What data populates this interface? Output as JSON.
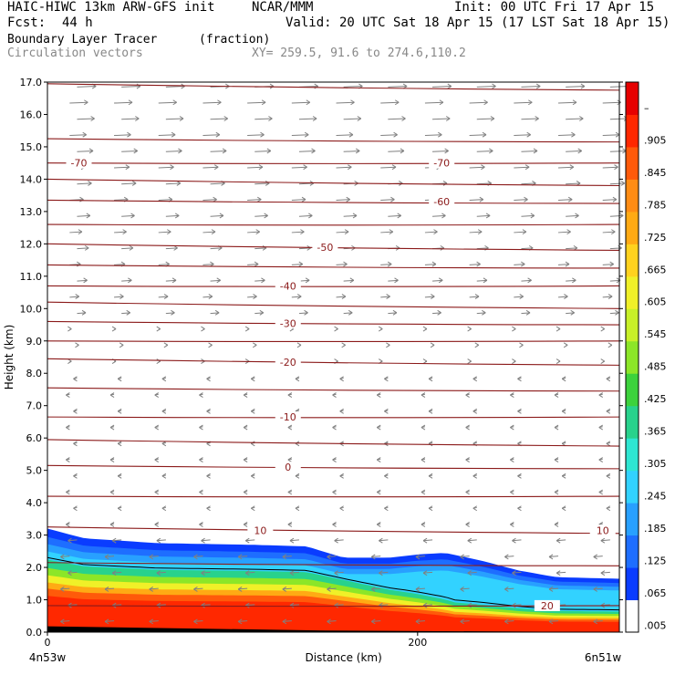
{
  "header": {
    "model": "HAIC-HIWC 13km ARW-GFS init",
    "org": "NCAR/MMM",
    "init": "Init: 00 UTC Fri 17 Apr 15",
    "fcst_label": "Fcst:",
    "fcst_value": "44 h",
    "valid": "Valid: 20 UTC Sat 18 Apr 15 (17 LST Sat 18 Apr 15)",
    "field": "Boundary Layer Tracer",
    "units": "(fraction)",
    "field2": "Circulation vectors",
    "xy": "XY= 259.5, 91.6 to 274.6,110.2"
  },
  "chart_data": {
    "type": "heatmap",
    "ylabel": "Height (km)",
    "xlabel": "Distance (km)",
    "x_left_label": "4n53w",
    "x_right_label": "6n51w",
    "xlim": [
      0,
      309
    ],
    "ylim": [
      0,
      17
    ],
    "x_ticks": [
      "0",
      "200"
    ],
    "x_tick_values": [
      0,
      200
    ],
    "y_ticks": [
      "0.0",
      "1.0",
      "2.0",
      "3.0",
      "4.0",
      "5.0",
      "6.0",
      "7.0",
      "8.0",
      "9.0",
      "10.0",
      "11.0",
      "12.0",
      "13.0",
      "14.0",
      "15.0",
      "16.0",
      "17.0"
    ],
    "colorbar_labels": [
      ".005",
      ".065",
      ".125",
      ".185",
      ".245",
      ".305",
      ".365",
      ".425",
      ".485",
      ".545",
      ".605",
      ".665",
      ".725",
      ".785",
      ".845",
      ".905",
      "–"
    ],
    "colorbar_colors": [
      "#ffffff",
      "#0a3cff",
      "#1e6eff",
      "#28a0ff",
      "#32d2ff",
      "#2ee6d2",
      "#28d28c",
      "#3cd23c",
      "#8ce628",
      "#c8f028",
      "#f0f028",
      "#ffd21e",
      "#ffaa14",
      "#ff8c14",
      "#ff5a0a",
      "#ff2800",
      "#e60000"
    ],
    "isotherms": [
      {
        "label": "20",
        "value": 20,
        "height": 0.82
      },
      {
        "label": "10",
        "value": 10,
        "height": 3.15
      },
      {
        "label": "0",
        "value": 0,
        "height": 5.1
      },
      {
        "label": "-10",
        "value": -10,
        "height": 6.65
      },
      {
        "label": "-20",
        "value": -20,
        "height": 8.35
      },
      {
        "label": "-30",
        "value": -30,
        "height": 9.55
      },
      {
        "label": "-40",
        "value": -40,
        "height": 10.7
      },
      {
        "label": "-50",
        "value": -50,
        "height": 11.9
      },
      {
        "label": "-60",
        "value": -60,
        "height": 13.3
      },
      {
        "label": "-70",
        "value": -70,
        "height": 14.5
      }
    ],
    "isotherm_color": "#8b1a1a",
    "vector_color": "#808080",
    "tracer_top_km": [
      [
        0,
        3.2
      ],
      [
        20,
        2.9
      ],
      [
        60,
        2.75
      ],
      [
        110,
        2.7
      ],
      [
        140,
        2.65
      ],
      [
        160,
        2.3
      ],
      [
        185,
        2.3
      ],
      [
        200,
        2.4
      ],
      [
        215,
        2.45
      ],
      [
        235,
        2.2
      ],
      [
        255,
        1.9
      ],
      [
        275,
        1.7
      ],
      [
        309,
        1.65
      ]
    ]
  }
}
